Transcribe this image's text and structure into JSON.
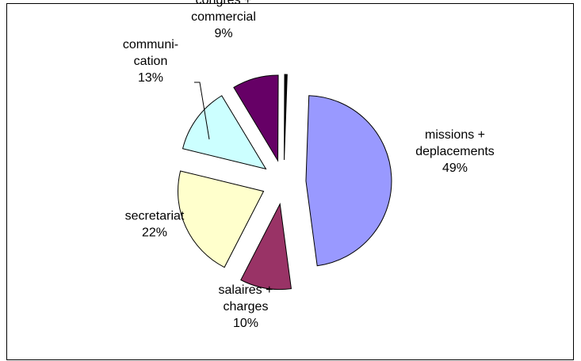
{
  "chart_data": {
    "type": "pie",
    "title": "",
    "slices": [
      {
        "label_lines": [
          "missions +",
          "deplacements"
        ],
        "percent_text": "49%",
        "value": 49,
        "color": "#9999ff"
      },
      {
        "label_lines": [
          "salaires +",
          "charges"
        ],
        "percent_text": "10%",
        "value": 10,
        "color": "#993366"
      },
      {
        "label_lines": [
          "secretariat"
        ],
        "percent_text": "22%",
        "value": 22,
        "color": "#ffffcc"
      },
      {
        "label_lines": [
          "communi-",
          "cation"
        ],
        "percent_text": "13%",
        "value": 13,
        "color": "#ccffff"
      },
      {
        "label_lines": [
          "congres +",
          "commercial"
        ],
        "percent_text": "9%",
        "value": 9,
        "color": "#660066"
      },
      {
        "label_lines": [],
        "percent_text": "",
        "value": 0.5,
        "color": "#000000"
      }
    ],
    "legend": "none",
    "exploded": true
  }
}
